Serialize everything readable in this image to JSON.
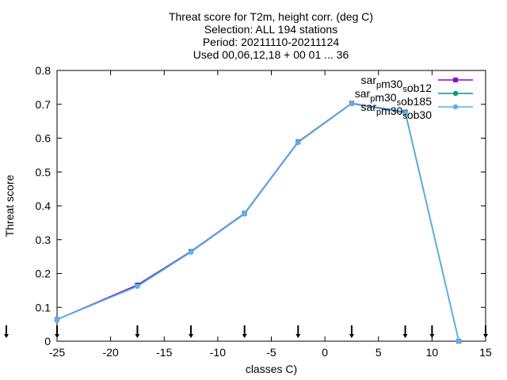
{
  "chart_data": {
    "type": "line",
    "title_lines": [
      "Threat score  for T2m, height corr. (deg C)",
      "Selection: ALL    194 stations",
      "Period: 20211110-20211124",
      "Used 00,06,12,18 + 00 01 ... 36"
    ],
    "xlabel": "classes C)",
    "ylabel": "Threat score",
    "xlim": [
      -25,
      15
    ],
    "ylim": [
      0,
      0.8
    ],
    "xticks": [
      -25,
      -20,
      -15,
      -10,
      -5,
      0,
      5,
      10,
      15
    ],
    "yticks": [
      0,
      0.1,
      0.2,
      0.3,
      0.4,
      0.5,
      0.6,
      0.7,
      0.8
    ],
    "arrow_markers_x": [
      -25,
      -17.5,
      -12.5,
      -7.5,
      -2.5,
      2.5,
      7.5,
      10,
      15
    ],
    "grid": false,
    "legend_position": "top-right",
    "series": [
      {
        "name": "sar_pm30_sob12",
        "name_parts": [
          [
            "sar",
            ""
          ],
          [
            "p",
            "sub"
          ],
          [
            "m30",
            ""
          ],
          [
            "s",
            "sub"
          ],
          [
            "ob12",
            ""
          ]
        ],
        "color": "#9400d3",
        "marker": "square",
        "x": [
          -25,
          -17.5,
          -12.5,
          -7.5,
          -2.5,
          2.5,
          7.5,
          12.5
        ],
        "y": [
          0.064,
          0.166,
          0.265,
          0.378,
          0.589,
          0.703,
          0.677,
          0.0
        ]
      },
      {
        "name": "sar_pm30_sob185",
        "name_parts": [
          [
            "sar",
            ""
          ],
          [
            "p",
            "sub"
          ],
          [
            "m30",
            ""
          ],
          [
            "s",
            "sub"
          ],
          [
            "ob185",
            ""
          ]
        ],
        "color": "#009e73",
        "marker": "circle",
        "x": [
          -25,
          -17.5,
          -12.5,
          -7.5,
          -2.5,
          2.5,
          7.5,
          12.5
        ],
        "y": [
          0.064,
          0.163,
          0.264,
          0.376,
          0.588,
          0.702,
          0.676,
          0.0
        ]
      },
      {
        "name": "sar_pm30_sob30",
        "name_parts": [
          [
            "sar",
            ""
          ],
          [
            "p",
            "sub"
          ],
          [
            "m30",
            ""
          ],
          [
            "s",
            "sub"
          ],
          [
            "ob30",
            ""
          ]
        ],
        "color": "#56b4e9",
        "marker": "circle",
        "x": [
          -25,
          -17.5,
          -12.5,
          -7.5,
          -2.5,
          2.5,
          7.5,
          12.5
        ],
        "y": [
          0.064,
          0.162,
          0.263,
          0.377,
          0.587,
          0.702,
          0.674,
          0.0
        ]
      }
    ]
  }
}
